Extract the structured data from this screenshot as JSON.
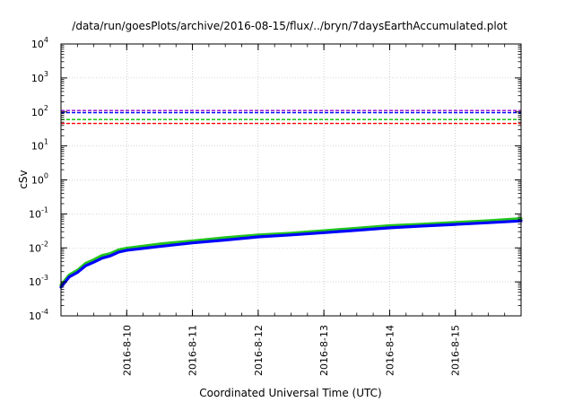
{
  "chart_data": {
    "type": "line",
    "title": "/data/run/goesPlots/archive/2016-08-15/flux/../bryn/7daysEarthAccumulated.plot",
    "xlabel": "Coordinated Universal Time (UTC)",
    "ylabel": "cSv",
    "y_scale": "log",
    "ylim": [
      0.0001,
      10000
    ],
    "y_ticks": [
      {
        "value": 0.0001,
        "base": "10",
        "exp": "-4"
      },
      {
        "value": 0.001,
        "base": "10",
        "exp": "-3"
      },
      {
        "value": 0.01,
        "base": "10",
        "exp": "-2"
      },
      {
        "value": 0.1,
        "base": "10",
        "exp": "-1"
      },
      {
        "value": 1,
        "base": "10",
        "exp": "0"
      },
      {
        "value": 10,
        "base": "10",
        "exp": "1"
      },
      {
        "value": 100,
        "base": "10",
        "exp": "2"
      },
      {
        "value": 1000,
        "base": "10",
        "exp": "3"
      },
      {
        "value": 10000,
        "base": "10",
        "exp": "4"
      }
    ],
    "xlim": [
      "2016-08-09 00:00",
      "2016-08-16 00:00"
    ],
    "x_ticks": [
      "2016-8-10",
      "2016-8-11",
      "2016-8-12",
      "2016-8-13",
      "2016-8-14",
      "2016-8-15"
    ],
    "grid": true,
    "threshold_lines": [
      {
        "y": 110,
        "color": "#9400d3"
      },
      {
        "y": 95,
        "color": "#0000ff"
      },
      {
        "y": 60,
        "color": "#00c000"
      },
      {
        "y": 46,
        "color": "#ff0000"
      }
    ],
    "series": [
      {
        "color": "#22c41e",
        "x": [
          "2016-08-09 00:00",
          "2016-08-09 03:00",
          "2016-08-09 06:00",
          "2016-08-09 09:00",
          "2016-08-09 12:00",
          "2016-08-09 15:00",
          "2016-08-09 18:00",
          "2016-08-09 21:00",
          "2016-08-10 00:00",
          "2016-08-10 12:00",
          "2016-08-11 00:00",
          "2016-08-11 12:00",
          "2016-08-12 00:00",
          "2016-08-12 12:00",
          "2016-08-13 00:00",
          "2016-08-13 12:00",
          "2016-08-14 00:00",
          "2016-08-14 12:00",
          "2016-08-15 00:00",
          "2016-08-15 12:00",
          "2016-08-16 00:00"
        ],
        "values": [
          0.0008,
          0.0016,
          0.0022,
          0.0035,
          0.0045,
          0.006,
          0.0068,
          0.0088,
          0.0098,
          0.013,
          0.016,
          0.02,
          0.024,
          0.027,
          0.032,
          0.038,
          0.045,
          0.05,
          0.056,
          0.063,
          0.073
        ]
      },
      {
        "color": "#0000ff",
        "x": [
          "2016-08-09 00:00",
          "2016-08-09 03:00",
          "2016-08-09 06:00",
          "2016-08-09 09:00",
          "2016-08-09 12:00",
          "2016-08-09 15:00",
          "2016-08-09 18:00",
          "2016-08-09 21:00",
          "2016-08-10 00:00",
          "2016-08-10 12:00",
          "2016-08-11 00:00",
          "2016-08-11 12:00",
          "2016-08-12 00:00",
          "2016-08-12 12:00",
          "2016-08-13 00:00",
          "2016-08-13 12:00",
          "2016-08-14 00:00",
          "2016-08-14 12:00",
          "2016-08-15 00:00",
          "2016-08-15 12:00",
          "2016-08-16 00:00"
        ],
        "values": [
          0.0007,
          0.0014,
          0.0019,
          0.003,
          0.0038,
          0.005,
          0.0058,
          0.0075,
          0.0085,
          0.011,
          0.014,
          0.017,
          0.021,
          0.024,
          0.028,
          0.033,
          0.039,
          0.044,
          0.049,
          0.055,
          0.062
        ]
      }
    ]
  }
}
